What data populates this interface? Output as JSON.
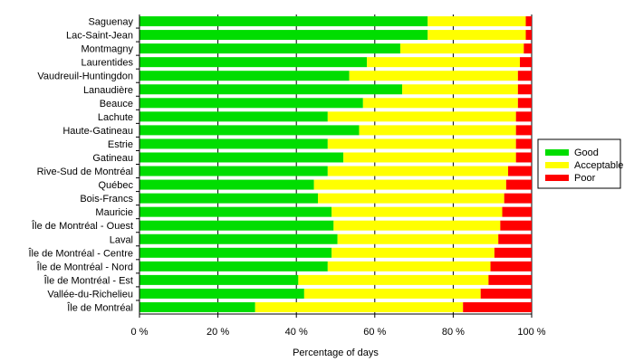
{
  "chart_data": {
    "type": "bar",
    "orientation": "horizontal",
    "stacked": true,
    "categories": [
      "Saguenay",
      "Lac-Saint-Jean",
      "Montmagny",
      "Laurentides",
      "Vaudreuil-Huntingdon",
      "Lanaudière",
      "Beauce",
      "Lachute",
      "Haute-Gatineau",
      "Estrie",
      "Gatineau",
      "Rive-Sud de Montréal",
      "Québec",
      "Bois-Francs",
      "Mauricie",
      "Île de Montréal - Ouest",
      "Laval",
      "Île de Montréal - Centre",
      "Île de Montréal - Nord",
      "Île de Montréal - Est",
      "Vallée-du-Richelieu",
      "Île de Montréal"
    ],
    "series": [
      {
        "name": "Good",
        "color": "#00dd00",
        "values": [
          73.5,
          73.5,
          66.5,
          58,
          53.5,
          67,
          57,
          48,
          56,
          48,
          52,
          48,
          44.5,
          45.5,
          49,
          49.5,
          50.5,
          49,
          48,
          40.5,
          42,
          29.5
        ]
      },
      {
        "name": "Acceptable",
        "color": "#ffff00",
        "values": [
          25,
          25,
          31.5,
          39,
          43,
          29.5,
          39.5,
          48,
          40,
          48,
          44,
          46,
          49,
          47.5,
          43.5,
          42.5,
          41,
          41.5,
          41.5,
          48.5,
          45,
          53
        ]
      },
      {
        "name": "Poor",
        "color": "#ff0000",
        "values": [
          1.5,
          1.5,
          2,
          3,
          3.5,
          3.5,
          3.5,
          4,
          4,
          4,
          4,
          6,
          6.5,
          7,
          7.5,
          8,
          8.5,
          9.5,
          10.5,
          11,
          13,
          17.5
        ]
      }
    ],
    "x_ticks": [
      "0 %",
      "20 %",
      "40 %",
      "60 %",
      "80 %",
      "100 %"
    ],
    "x_tick_values": [
      0,
      20,
      40,
      60,
      80,
      100
    ],
    "xlabel": "Percentage of days",
    "xlim": [
      0,
      100
    ],
    "grid": "vertical",
    "legend_position": "right"
  }
}
